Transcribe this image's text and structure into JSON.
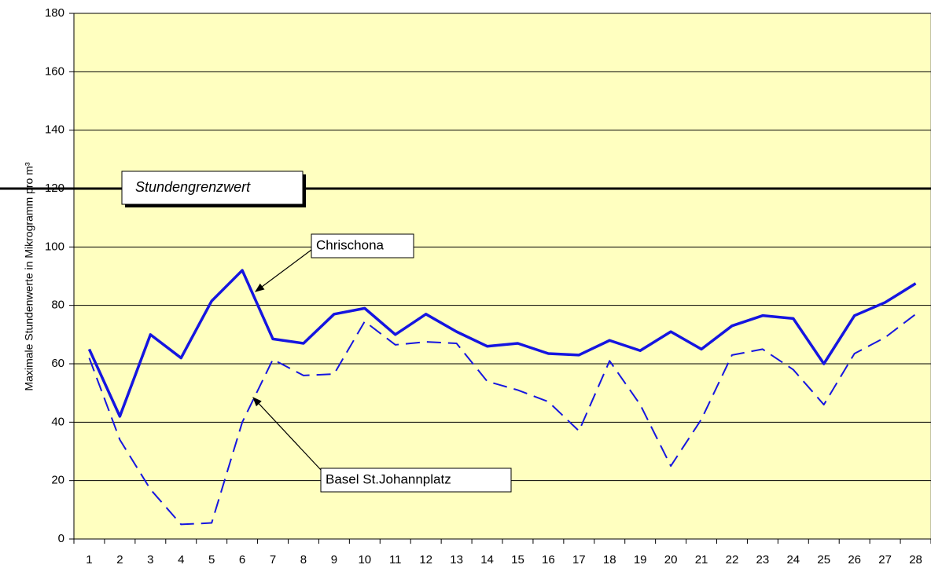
{
  "chart_data": {
    "type": "line",
    "y_label": "Maximale Stundenwerte in Mikrogramm pro m³",
    "categories": [
      1,
      2,
      3,
      4,
      5,
      6,
      7,
      8,
      9,
      10,
      11,
      12,
      13,
      14,
      15,
      16,
      17,
      18,
      19,
      20,
      21,
      22,
      23,
      24,
      25,
      26,
      27,
      28
    ],
    "series": [
      {
        "name": "Chrischona",
        "color": "#1515e0",
        "dashed": false,
        "values": [
          65,
          42,
          70,
          62,
          81.5,
          92,
          68.5,
          67,
          77,
          79,
          70,
          77,
          71,
          66,
          67,
          63.5,
          63,
          68,
          64.5,
          71,
          65,
          73,
          76.5,
          75.5,
          60,
          76.5,
          81,
          87.5
        ]
      },
      {
        "name": "Basel St.Johannplatz",
        "color": "#1515e0",
        "dashed": true,
        "values": [
          62,
          34,
          17,
          5,
          5.5,
          40,
          61.5,
          56,
          56.5,
          74.5,
          66.5,
          67.5,
          67,
          54,
          51,
          47,
          37,
          61,
          46,
          25,
          41,
          63,
          65,
          58,
          46,
          63.5,
          69,
          77
        ]
      }
    ],
    "threshold": {
      "value": 120,
      "label": "Stundengrenzwert"
    },
    "ylim": [
      0,
      180
    ],
    "yticks": [
      0,
      20,
      40,
      60,
      80,
      100,
      120,
      140,
      160,
      180
    ],
    "grid": true,
    "background": "#ffffc0"
  }
}
